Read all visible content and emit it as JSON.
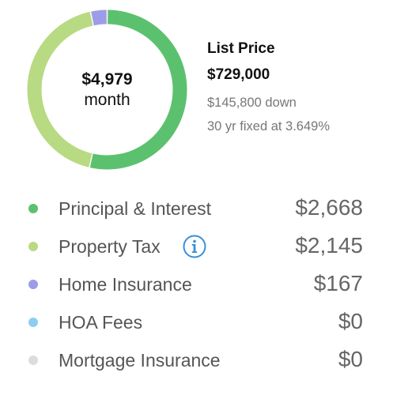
{
  "summary": {
    "monthly_total": "$4,979",
    "monthly_unit": "month",
    "list_label": "List Price",
    "list_price": "$729,000",
    "down_payment": "$145,800 down",
    "loan_terms": "30 yr fixed at 3.649%"
  },
  "breakdown": [
    {
      "label": "Principal & Interest",
      "value": "$2,668",
      "amount": 2668,
      "color": "#5cc16e",
      "icon": ""
    },
    {
      "label": "Property Tax",
      "value": "$2,145",
      "amount": 2145,
      "color": "#b8da82",
      "icon": "info-icon"
    },
    {
      "label": "Home Insurance",
      "value": "$167",
      "amount": 167,
      "color": "#9c9ce8",
      "icon": ""
    },
    {
      "label": "HOA Fees",
      "value": "$0",
      "amount": 0,
      "color": "#8dcdf0",
      "icon": ""
    },
    {
      "label": "Mortgage Insurance",
      "value": "$0",
      "amount": 0,
      "color": "#dcdcdc",
      "icon": ""
    }
  ],
  "colors": {
    "info_icon": "#3a8fd9"
  }
}
